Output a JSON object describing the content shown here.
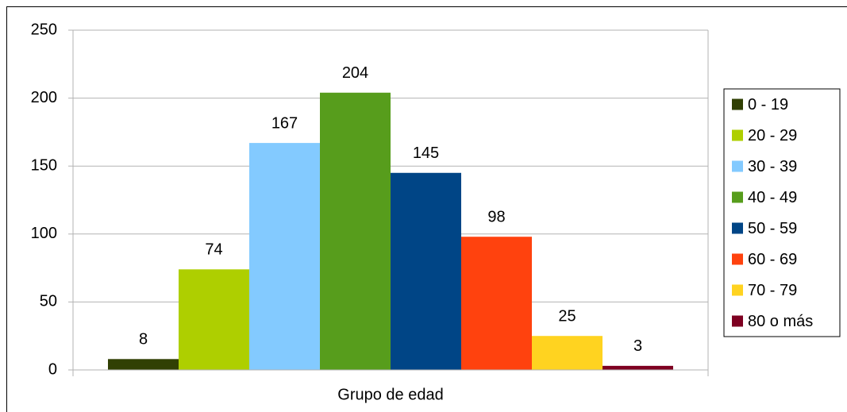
{
  "chart_data": {
    "type": "bar",
    "categories": [
      "Grupo de edad"
    ],
    "series": [
      {
        "name": "0 - 19",
        "color": "#314004",
        "values": [
          8
        ]
      },
      {
        "name": "20 - 29",
        "color": "#aecf00",
        "values": [
          74
        ]
      },
      {
        "name": "30 - 39",
        "color": "#83caff",
        "values": [
          167
        ]
      },
      {
        "name": "40 - 49",
        "color": "#579d1c",
        "values": [
          204
        ]
      },
      {
        "name": "50 - 59",
        "color": "#004586",
        "values": [
          145
        ]
      },
      {
        "name": "60 - 69",
        "color": "#ff420e",
        "values": [
          98
        ]
      },
      {
        "name": "70 - 79",
        "color": "#ffd320",
        "values": [
          25
        ]
      },
      {
        "name": "80 o más",
        "color": "#7e0021",
        "values": [
          3
        ]
      }
    ],
    "ylim": [
      0,
      250
    ],
    "yticks": [
      0,
      50,
      100,
      150,
      200,
      250
    ],
    "grid": true,
    "legend": "right"
  }
}
